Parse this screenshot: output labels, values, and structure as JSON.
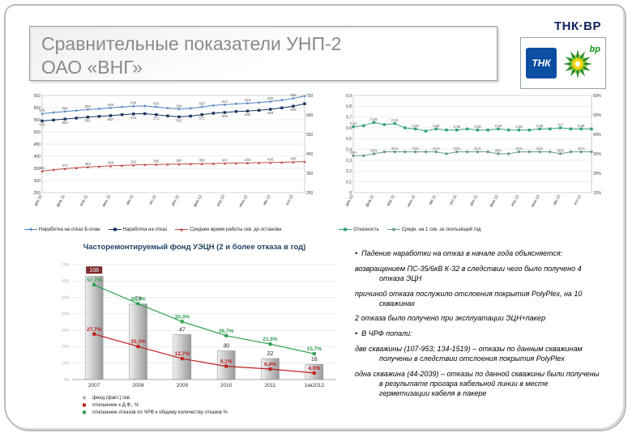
{
  "header": {
    "title_line1": "Сравнительные показатели УНП-2",
    "title_line2": "ОАО «ВНГ»",
    "brand_word": "ТНК·ВР",
    "brand_tnk": "ТНК",
    "brand_bp": "bp"
  },
  "chart_data": [
    {
      "id": "mtbf",
      "type": "line",
      "title": "",
      "legend_position": "bottom",
      "grid": true,
      "x": [
        "дек.10",
        "янв.11",
        "фев.11",
        "мар.11",
        "апр.11",
        "май.11",
        "июн.11",
        "июл.11",
        "авг.11",
        "сен.11",
        "окт.11",
        "ноя.11",
        "дек.11",
        "янв.12",
        "фев.12",
        "мар.12",
        "апр.12",
        "май.12",
        "июн.12",
        "июл.12",
        "авг.12",
        "сен.12",
        "окт.12",
        "ноя.12"
      ],
      "axisL": {
        "min": 250,
        "max": 650,
        "step": 50,
        "fmt": "int"
      },
      "axisR": {
        "min": 250,
        "max": 750,
        "step": 100,
        "fmt": "int"
      },
      "series": [
        {
          "name": "Наработка на отказ Б-план",
          "color": "#4f81bd",
          "marker": "diamond",
          "axis": "left",
          "fmt": "int",
          "labelPos": "above",
          "values": [
            575,
            580,
            584,
            588,
            592,
            595,
            599,
            603,
            606,
            607,
            603,
            598,
            594,
            597,
            603,
            609,
            612,
            616,
            618,
            621,
            625,
            631,
            638,
            648
          ]
        },
        {
          "name": "Наработка на отказ",
          "color": "#17375e",
          "marker": "square",
          "axis": "left",
          "fmt": "int",
          "labelPos": "below",
          "values": [
            545,
            549,
            553,
            557,
            561,
            564,
            567,
            571,
            574,
            575,
            571,
            566,
            562,
            565,
            571,
            577,
            580,
            584,
            586,
            589,
            593,
            599,
            606,
            616
          ]
        },
        {
          "name": "Среднее время работы скв. до останова",
          "color": "#c0504d",
          "marker": "triangle",
          "axis": "right",
          "fmt": "int",
          "labelPos": "above",
          "values": [
            361,
            368,
            373,
            378,
            382,
            385,
            388,
            390,
            392,
            394,
            395,
            396,
            397,
            398,
            399,
            400,
            401,
            402,
            403,
            404,
            405,
            406,
            408,
            410
          ]
        }
      ]
    },
    {
      "id": "failrate",
      "type": "line",
      "title": "",
      "legend_position": "bottom",
      "grid": true,
      "x": [
        "дек.10",
        "янв.11",
        "фев.11",
        "мар.11",
        "апр.11",
        "май.11",
        "июн.11",
        "июл.11",
        "авг.11",
        "сен.11",
        "окт.11",
        "ноя.11",
        "дек.11",
        "янв.12",
        "фев.12",
        "мар.12",
        "апр.12",
        "май.12",
        "июн.12",
        "июл.12",
        "авг.12",
        "сен.12",
        "окт.12",
        "ноя.12"
      ],
      "axisL": {
        "min": 0,
        "max": 0.9,
        "step": 0.1,
        "fmt": "frac1"
      },
      "axisR": {
        "min": 10,
        "max": 60,
        "step": 10,
        "fmt": "pct"
      },
      "series": [
        {
          "name": "Отказность",
          "color": "#35a07a",
          "marker": "square",
          "axis": "left",
          "fmt": "frac2",
          "labelPos": "above",
          "values": [
            0.61,
            0.62,
            0.65,
            0.63,
            0.64,
            0.6,
            0.59,
            0.57,
            0.59,
            0.58,
            0.58,
            0.59,
            0.58,
            0.58,
            0.59,
            0.58,
            0.58,
            0.58,
            0.59,
            0.59,
            0.6,
            0.59,
            0.59,
            0.59
          ]
        },
        {
          "name": "Средн. на 1 скв. за скользящий год",
          "color": "#6a9a90",
          "marker": "circle",
          "axis": "right",
          "fmt": "pct",
          "labelPos": "above",
          "values": [
            29,
            29,
            30,
            31,
            31,
            31,
            31,
            31,
            31,
            30,
            31,
            31,
            31,
            31,
            30,
            30,
            31,
            31,
            31,
            31,
            30,
            31,
            31,
            31
          ]
        }
      ]
    },
    {
      "id": "chrf",
      "type": "bar",
      "title": "Часторемонтируемый фонд УЭЦН (2 и более отказа в год)",
      "legend_position": "bottom-left",
      "categories": [
        "2007",
        "2008",
        "2009",
        "2010",
        "2011",
        "1кв2012"
      ],
      "bars": {
        "name": "фонд (факт.) скв.",
        "color": "#c9c9c9",
        "max": 120,
        "values": [
          108,
          79,
          47,
          30,
          22,
          16
        ]
      },
      "lines": [
        {
          "name": "отношение к Д.Ф., %",
          "color": "#c02020",
          "values": [
            27.7,
            20.1,
            12.7,
            8.1,
            6.4,
            4.0
          ]
        },
        {
          "name": "отношение отказов по ЧРФ к общему количеству отказов %",
          "color": "#2e9e4f",
          "values": [
            57.7,
            46.2,
            35.3,
            26.7,
            21.6,
            15.7
          ]
        }
      ],
      "axis_pct": {
        "min": 0,
        "max": 70,
        "step": 10
      }
    }
  ],
  "notes": {
    "items": [
      {
        "bullet": true,
        "text": "Падение наработки на отказ в начале года объясняется:"
      },
      {
        "bullet": false,
        "text": "возвращением ПС-35/6кВ К-32 в следствии чего было получено 4 отказа ЭЦН"
      },
      {
        "bullet": false,
        "text": "причиной отказа послужило отслоения покрытия PolyPlex, на 10 скважинах"
      },
      {
        "bullet": false,
        "text": "2 отказа было получено при эксплуатации ЭЦН+пакер"
      },
      {
        "bullet": true,
        "text": "В ЧРФ попали:"
      },
      {
        "bullet": false,
        "text": "две скважины (107-953; 134-1519) – отказы по данным скважинам получены в следствии отслоения покрытия PolyPlex"
      },
      {
        "bullet": false,
        "text": "одна скважина (44-2039) – отказы по данной скважины были получены в результате прогара кабельной линии в месте герметизации кабеля в пакере"
      }
    ]
  }
}
